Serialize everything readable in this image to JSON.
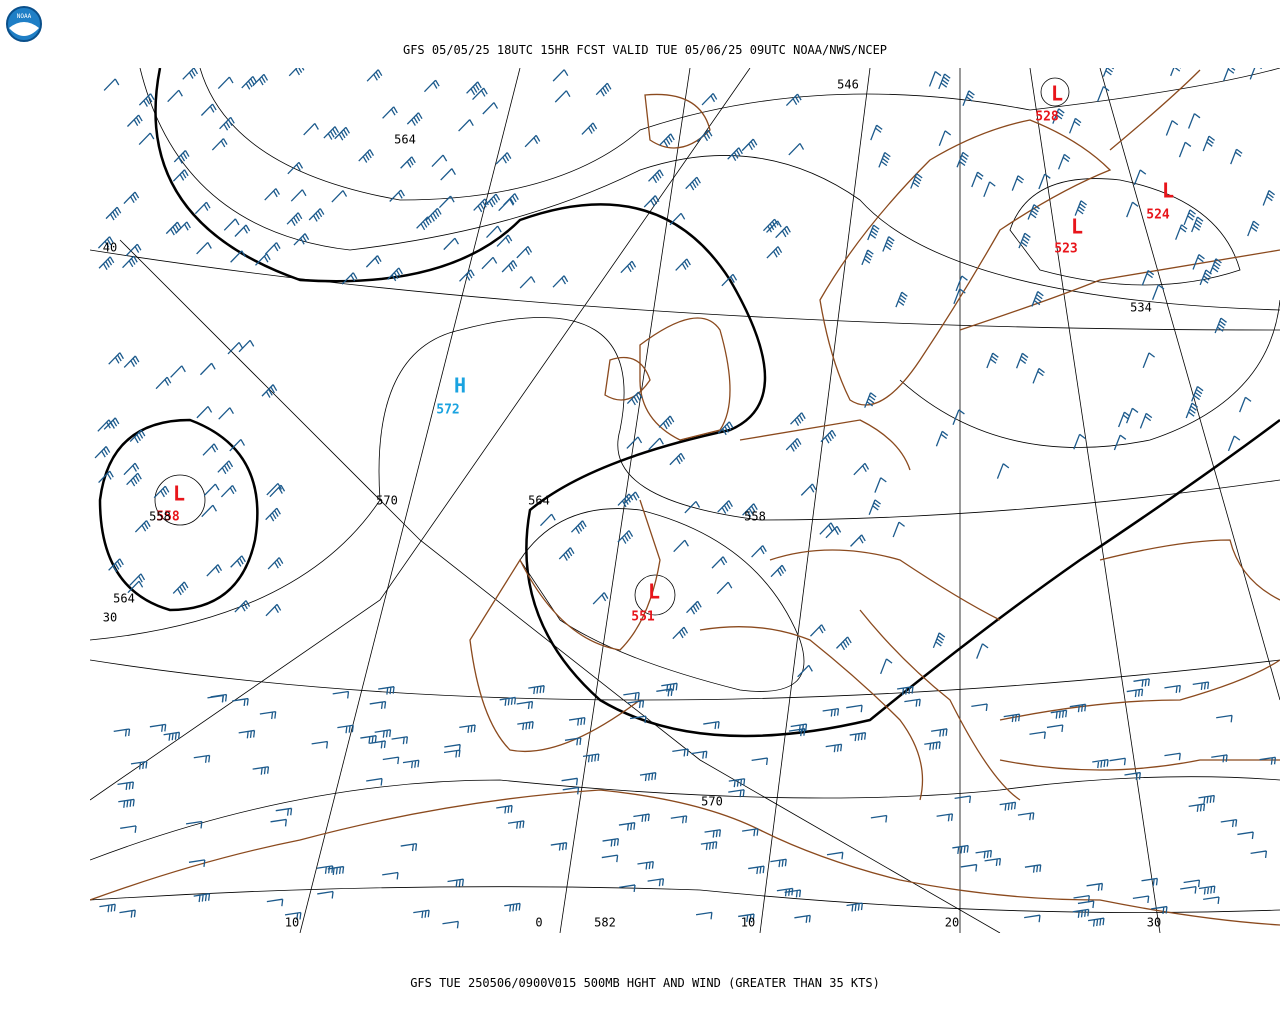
{
  "header": {
    "logo": "NOAA",
    "title": "GFS 05/05/25 18UTC 15HR FCST VALID TUE 05/06/25 09UTC NOAA/NWS/NCEP"
  },
  "footer": {
    "caption": "GFS TUE 250506/0900V015 500MB HGHT AND WIND (GREATER THAN 35 KTS)"
  },
  "centers": [
    {
      "symbol": "L",
      "value": "528"
    },
    {
      "symbol": "L",
      "value": "524"
    },
    {
      "symbol": "L",
      "value": "523"
    },
    {
      "symbol": "L",
      "value": "558"
    },
    {
      "symbol": "H",
      "value": "572"
    },
    {
      "symbol": "L",
      "value": "551"
    }
  ],
  "contour_labels": [
    "546",
    "534",
    "564",
    "558",
    "564",
    "570",
    "564",
    "570",
    "582",
    "558"
  ],
  "grid_labels": [
    "40",
    "30",
    "10",
    "0",
    "10",
    "20",
    "30"
  ]
}
